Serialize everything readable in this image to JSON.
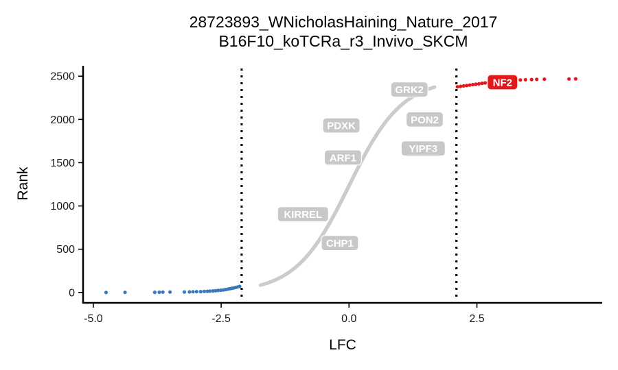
{
  "chart_data": {
    "type": "scatter",
    "title_lines": [
      "28723893_WNicholasHaining_Nature_2017",
      "B16F10_koTCRa_r3_Invivo_SKCM"
    ],
    "xlabel": "LFC",
    "ylabel": "Rank",
    "xlim": [
      -5.2,
      4.95
    ],
    "ylim": [
      -120,
      2620
    ],
    "x_ticks": [
      -5.0,
      -2.5,
      0.0,
      2.5
    ],
    "x_tick_labels": [
      "-5.0",
      "-2.5",
      "0.0",
      "2.5"
    ],
    "y_ticks": [
      0,
      500,
      1000,
      1500,
      2000,
      2500
    ],
    "y_tick_labels": [
      "0",
      "500",
      "1000",
      "1500",
      "2000",
      "2500"
    ],
    "thresholds": [
      -2.1,
      2.1
    ],
    "total_points": 2470,
    "sigmoid": {
      "center_lfc": 0.0,
      "scale": 0.52,
      "min_rank": 85,
      "max_rank": 2375
    },
    "colors": {
      "neutral": "#cccccc",
      "depleted": "#3a7ab8",
      "enriched": "#e31a1c",
      "label_box": "#c8c8c8",
      "threshold_line": "#000000"
    },
    "series": [
      {
        "group": "depleted",
        "points": [
          {
            "x": -4.75,
            "y": 0
          },
          {
            "x": -4.38,
            "y": 1
          },
          {
            "x": -3.8,
            "y": 2
          },
          {
            "x": -3.71,
            "y": 3
          },
          {
            "x": -3.64,
            "y": 4
          },
          {
            "x": -3.5,
            "y": 5
          },
          {
            "x": -3.22,
            "y": 6
          },
          {
            "x": -3.12,
            "y": 7
          },
          {
            "x": -3.05,
            "y": 8
          },
          {
            "x": -2.98,
            "y": 9
          },
          {
            "x": -2.9,
            "y": 10
          },
          {
            "x": -2.83,
            "y": 12
          },
          {
            "x": -2.77,
            "y": 14
          },
          {
            "x": -2.72,
            "y": 16
          },
          {
            "x": -2.66,
            "y": 18
          },
          {
            "x": -2.61,
            "y": 20
          },
          {
            "x": -2.56,
            "y": 23
          },
          {
            "x": -2.51,
            "y": 26
          },
          {
            "x": -2.46,
            "y": 29
          },
          {
            "x": -2.42,
            "y": 33
          },
          {
            "x": -2.38,
            "y": 37
          },
          {
            "x": -2.34,
            "y": 42
          },
          {
            "x": -2.3,
            "y": 47
          },
          {
            "x": -2.26,
            "y": 52
          },
          {
            "x": -2.22,
            "y": 58
          },
          {
            "x": -2.18,
            "y": 64
          },
          {
            "x": -2.14,
            "y": 70
          }
        ]
      },
      {
        "group": "enriched",
        "points": [
          {
            "x": 2.12,
            "y": 2377
          },
          {
            "x": 2.18,
            "y": 2382
          },
          {
            "x": 2.24,
            "y": 2387
          },
          {
            "x": 2.3,
            "y": 2392
          },
          {
            "x": 2.36,
            "y": 2397
          },
          {
            "x": 2.42,
            "y": 2402
          },
          {
            "x": 2.48,
            "y": 2407
          },
          {
            "x": 2.54,
            "y": 2412
          },
          {
            "x": 2.6,
            "y": 2417
          },
          {
            "x": 2.66,
            "y": 2422
          },
          {
            "x": 2.72,
            "y": 2426
          },
          {
            "x": 2.78,
            "y": 2430
          },
          {
            "x": 2.84,
            "y": 2434
          },
          {
            "x": 2.9,
            "y": 2438
          },
          {
            "x": 2.96,
            "y": 2441
          },
          {
            "x": 3.02,
            "y": 2444
          },
          {
            "x": 3.1,
            "y": 2447
          },
          {
            "x": 3.18,
            "y": 2450
          },
          {
            "x": 3.26,
            "y": 2453
          },
          {
            "x": 3.35,
            "y": 2456
          },
          {
            "x": 3.45,
            "y": 2459
          },
          {
            "x": 3.57,
            "y": 2461
          },
          {
            "x": 3.67,
            "y": 2463
          },
          {
            "x": 3.82,
            "y": 2465
          },
          {
            "x": 4.3,
            "y": 2467
          },
          {
            "x": 4.43,
            "y": 2469
          }
        ]
      }
    ],
    "labels": [
      {
        "text": "NF2",
        "x": 3.0,
        "y": 2430,
        "fill": "#e31a1c"
      },
      {
        "text": "GRK2",
        "x": 1.18,
        "y": 2345,
        "fill": "#c8c8c8"
      },
      {
        "text": "PDXK",
        "x": -0.15,
        "y": 1930,
        "fill": "#c8c8c8"
      },
      {
        "text": "PON2",
        "x": 1.48,
        "y": 2000,
        "fill": "#c8c8c8"
      },
      {
        "text": "YIPF3",
        "x": 1.45,
        "y": 1665,
        "fill": "#c8c8c8"
      },
      {
        "text": "ARF1",
        "x": -0.12,
        "y": 1560,
        "fill": "#c8c8c8"
      },
      {
        "text": "KIRREL",
        "x": -0.9,
        "y": 905,
        "fill": "#c8c8c8"
      },
      {
        "text": "CHP1",
        "x": -0.18,
        "y": 572,
        "fill": "#c8c8c8"
      }
    ]
  }
}
